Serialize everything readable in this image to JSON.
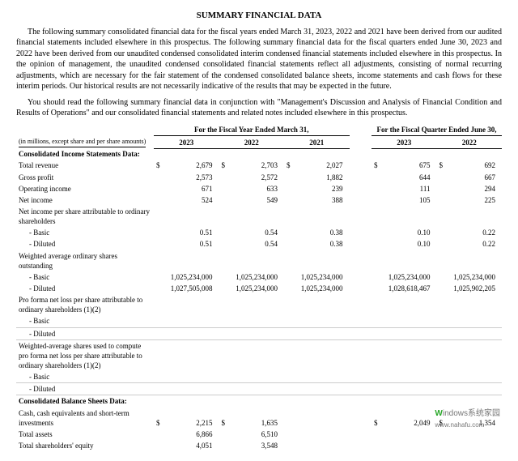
{
  "title": "SUMMARY FINANCIAL DATA",
  "para1": "The following summary consolidated financial data for the fiscal years ended March 31, 2023, 2022 and 2021 have been derived from our audited financial statements included elsewhere in this prospectus. The following summary financial data for the fiscal quarters ended June 30, 2023 and 2022 have been derived from our unaudited condensed consolidated interim condensed financial statements included elsewhere in this prospectus. In the opinion of management, the unaudited condensed consolidated financial statements reflect all adjustments, consisting of normal recurring adjustments, which are necessary for the fair statement of the condensed consolidated balance sheets, income statements and cash flows for these interim periods. Our historical results are not necessarily indicative of the results that may be expected in the future.",
  "para2": "You should read the following summary financial data in conjunction with \"Management's Discussion and Analysis of Financial Condition and Results of Operations\" and our consolidated financial statements and related notes included elsewhere in this prospectus.",
  "unitsNote": "(in millions, except share and per share amounts)",
  "grpYear": "For the Fiscal Year Ended March 31,",
  "grpQuarter": "For the Fiscal Quarter Ended June 30,",
  "yr": {
    "y2023": "2023",
    "y2022": "2022",
    "y2021": "2021",
    "q2023": "2023",
    "q2022": "2022"
  },
  "rows": {
    "cis": "Consolidated Income Statements Data:",
    "totalRevenue": {
      "label": "Total revenue",
      "y2023": "2,679",
      "y2022": "2,703",
      "y2021": "2,027",
      "q2023": "675",
      "q2022": "692"
    },
    "grossProfit": {
      "label": "Gross profit",
      "y2023": "2,573",
      "y2022": "2,572",
      "y2021": "1,882",
      "q2023": "644",
      "q2022": "667"
    },
    "opIncome": {
      "label": "Operating income",
      "y2023": "671",
      "y2022": "633",
      "y2021": "239",
      "q2023": "111",
      "q2022": "294"
    },
    "netIncome": {
      "label": "Net income",
      "y2023": "524",
      "y2022": "549",
      "y2021": "388",
      "q2023": "105",
      "q2022": "225"
    },
    "nipsh": "Net income per share attributable to ordinary shareholders",
    "basic": "- Basic",
    "diluted": "- Diluted",
    "epsBasic": {
      "y2023": "0.51",
      "y2022": "0.54",
      "y2021": "0.38",
      "q2023": "0.10",
      "q2022": "0.22"
    },
    "epsDiluted": {
      "y2023": "0.51",
      "y2022": "0.54",
      "y2021": "0.38",
      "q2023": "0.10",
      "q2022": "0.22"
    },
    "waos": "Weighted average ordinary shares outstanding",
    "sharesBasic": {
      "y2023": "1,025,234,000",
      "y2022": "1,025,234,000",
      "y2021": "1,025,234,000",
      "q2023": "1,025,234,000",
      "q2022": "1,025,234,000"
    },
    "sharesDiluted": {
      "y2023": "1,027,505,008",
      "y2022": "1,025,234,000",
      "y2021": "1,025,234,000",
      "q2023": "1,028,618,467",
      "q2022": "1,025,902,205"
    },
    "pfNetLoss": "Pro forma net loss per share attributable to ordinary shareholders (1)(2)",
    "waShares": "Weighted-average shares used to compute pro forma net loss per share attributable to ordinary shareholders (1)(2)",
    "cbs": "Consolidated Balance Sheets Data:",
    "cash": {
      "label": "Cash, cash equivalents and short-term investments",
      "y2023": "2,215",
      "y2022": "1,635",
      "q2023": "2,049",
      "q2022": "1,354"
    },
    "totalAssets": {
      "label": "Total assets",
      "y2023": "6,866",
      "y2022": "6,510"
    },
    "equity": {
      "label": "Total shareholders' equity",
      "y2023": "4,051",
      "y2022": "3,548"
    }
  },
  "dollar": "$",
  "watermark": {
    "char": "W",
    "rest": "indows系统家园",
    "url": "www.nahafu.com"
  }
}
